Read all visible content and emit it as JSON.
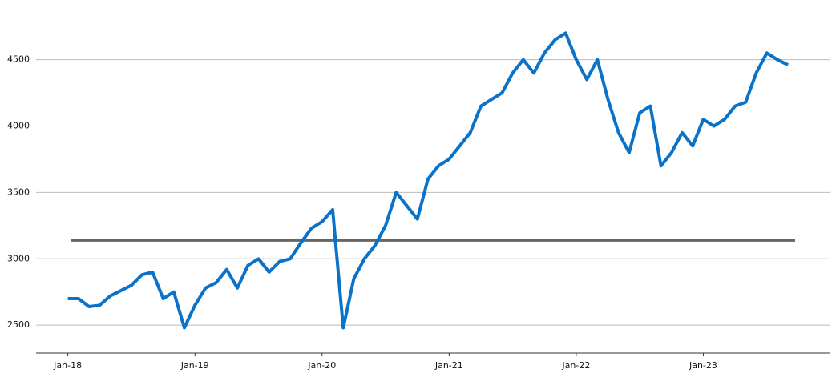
{
  "chart_data": {
    "type": "line",
    "x": [
      "2018-01",
      "2018-02",
      "2018-03",
      "2018-04",
      "2018-05",
      "2018-06",
      "2018-07",
      "2018-08",
      "2018-09",
      "2018-10",
      "2018-11",
      "2018-12",
      "2019-01",
      "2019-02",
      "2019-03",
      "2019-04",
      "2019-05",
      "2019-06",
      "2019-07",
      "2019-08",
      "2019-09",
      "2019-10",
      "2019-11",
      "2019-12",
      "2020-01",
      "2020-02",
      "2020-03",
      "2020-04",
      "2020-05",
      "2020-06",
      "2020-07",
      "2020-08",
      "2020-09",
      "2020-10",
      "2020-11",
      "2020-12",
      "2021-01",
      "2021-02",
      "2021-03",
      "2021-04",
      "2021-05",
      "2021-06",
      "2021-07",
      "2021-08",
      "2021-09",
      "2021-10",
      "2021-11",
      "2021-12",
      "2022-01",
      "2022-02",
      "2022-03",
      "2022-04",
      "2022-05",
      "2022-06",
      "2022-07",
      "2022-08",
      "2022-09",
      "2022-10",
      "2022-11",
      "2022-12",
      "2023-01",
      "2023-02",
      "2023-03",
      "2023-04",
      "2023-05",
      "2023-06",
      "2023-07",
      "2023-08",
      "2023-09"
    ],
    "series": [
      {
        "color": "#0b72c9",
        "values": [
          2700,
          2700,
          2640,
          2650,
          2720,
          2760,
          2800,
          2880,
          2900,
          2700,
          2750,
          2480,
          2650,
          2780,
          2820,
          2920,
          2780,
          2950,
          3000,
          2900,
          2980,
          3000,
          3120,
          3230,
          3280,
          3370,
          2480,
          2850,
          3000,
          3100,
          3250,
          3500,
          3400,
          3300,
          3600,
          3700,
          3750,
          3850,
          3950,
          4150,
          4200,
          4250,
          4400,
          4500,
          4400,
          4550,
          4650,
          4700,
          4500,
          4350,
          4500,
          4200,
          3950,
          3800,
          4100,
          4150,
          3700,
          3800,
          3950,
          3850,
          4050,
          4000,
          4050,
          4150,
          4180,
          4400,
          4550,
          4500,
          4460
        ]
      }
    ],
    "reference_line": {
      "value": 3140,
      "color": "#666666"
    },
    "xlim": [
      "2017-10",
      "2024-01"
    ],
    "xticks": [
      {
        "value": "2018-01",
        "label": "Jan-18"
      },
      {
        "value": "2019-01",
        "label": "Jan-19"
      },
      {
        "value": "2020-01",
        "label": "Jan-20"
      },
      {
        "value": "2021-01",
        "label": "Jan-21"
      },
      {
        "value": "2022-01",
        "label": "Jan-22"
      },
      {
        "value": "2023-01",
        "label": "Jan-23"
      }
    ],
    "ylim": [
      2290,
      4950
    ],
    "yticks": [
      2500,
      3000,
      3500,
      4000,
      4500
    ],
    "grid": true
  }
}
